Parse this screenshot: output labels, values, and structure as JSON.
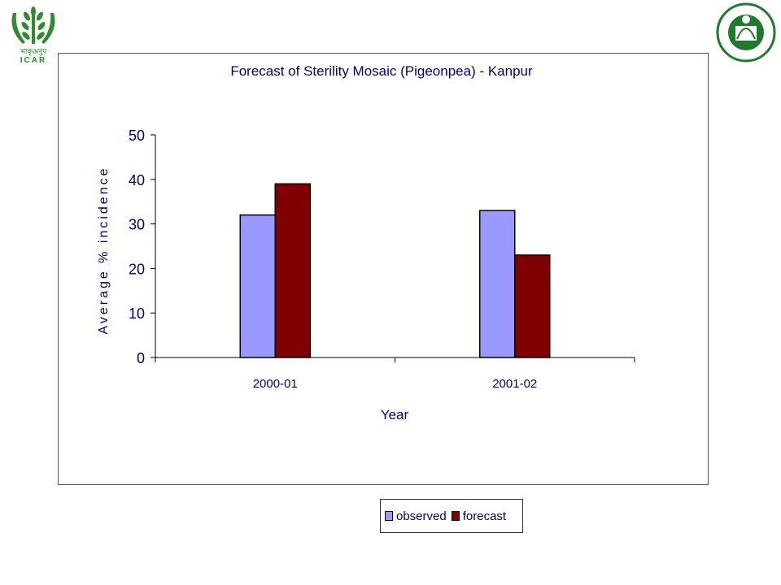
{
  "logos": {
    "left": {
      "name": "icar-logo",
      "text_hindi": "भाकृअनुप",
      "text": "ICAR",
      "color": "#2e8b2e"
    },
    "right": {
      "name": "iasri-logo",
      "color": "#1f7a2e"
    }
  },
  "colors": {
    "observed": "#9999ff",
    "forecast": "#800000",
    "text": "#000080",
    "axis": "#000000"
  },
  "chart_data": {
    "type": "bar",
    "title": "Forecast of Sterility Mosaic (Pigeonpea) -  Kanpur",
    "xlabel": "Year",
    "ylabel": "Average % incidence",
    "categories": [
      "2000-01",
      "2001-02"
    ],
    "series": [
      {
        "name": "observed",
        "values": [
          32,
          33
        ]
      },
      {
        "name": "forecast",
        "values": [
          39,
          23
        ]
      }
    ],
    "ylim": [
      0,
      50
    ],
    "yticks": [
      "0",
      "10",
      "20",
      "30",
      "40",
      "50"
    ],
    "grid": false,
    "legend_position": "bottom"
  }
}
